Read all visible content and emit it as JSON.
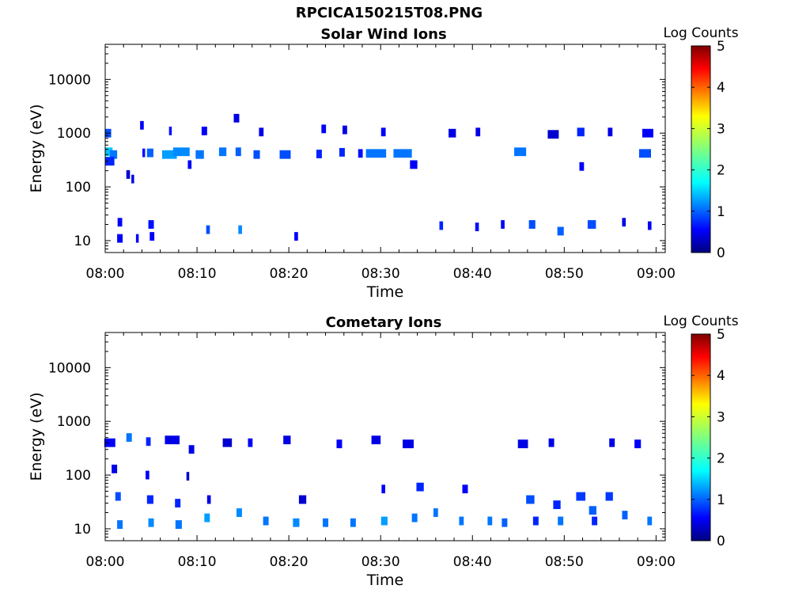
{
  "figure": {
    "title": "RPCICA150215T08.PNG"
  },
  "colorbar": {
    "label": "Log Counts",
    "ticks": [
      "0",
      "1",
      "2",
      "3",
      "4",
      "5"
    ],
    "range": [
      0,
      5
    ]
  },
  "chart_data": [
    {
      "type": "heatmap",
      "title": "Solar Wind Ions",
      "xlabel": "Time",
      "ylabel": "Energy (eV)",
      "x_ticks": [
        "08:00",
        "08:10",
        "08:20",
        "08:30",
        "08:40",
        "08:50",
        "09:00"
      ],
      "x_range_min": [
        0,
        61
      ],
      "y_ticks": [
        "10",
        "100",
        "1000",
        "10000"
      ],
      "y_scale": "log",
      "ylim_eV": [
        6,
        45000
      ],
      "cells": [
        [
          0.3,
          1000,
          0.7,
          1
        ],
        [
          0.4,
          450,
          0.8,
          1.6
        ],
        [
          0.9,
          400,
          0.8,
          1.2
        ],
        [
          0.5,
          300,
          1.0,
          0.8
        ],
        [
          1.6,
          22,
          0.5,
          0.6
        ],
        [
          1.6,
          11,
          0.6,
          0.6
        ],
        [
          2.5,
          170,
          0.4,
          0.4
        ],
        [
          3.0,
          140,
          0.3,
          0.5
        ],
        [
          3.5,
          11,
          0.3,
          0.6
        ],
        [
          4.0,
          1400,
          0.4,
          0.6
        ],
        [
          4.2,
          430,
          0.3,
          0.7
        ],
        [
          4.9,
          430,
          0.7,
          1.1
        ],
        [
          5.0,
          20,
          0.6,
          0.7
        ],
        [
          5.1,
          12,
          0.5,
          0.6
        ],
        [
          7.0,
          400,
          1.6,
          1.4
        ],
        [
          7.1,
          1100,
          0.3,
          0.7
        ],
        [
          8.3,
          450,
          1.8,
          1.3
        ],
        [
          9.2,
          260,
          0.4,
          0.6
        ],
        [
          10.3,
          400,
          0.9,
          1.2
        ],
        [
          10.8,
          1100,
          0.6,
          0.6
        ],
        [
          11.2,
          16,
          0.4,
          1.0
        ],
        [
          12.8,
          450,
          0.8,
          1.2
        ],
        [
          14.3,
          1900,
          0.6,
          0.5
        ],
        [
          14.5,
          450,
          0.6,
          1.1
        ],
        [
          14.7,
          16,
          0.4,
          1.3
        ],
        [
          16.5,
          400,
          0.7,
          1.0
        ],
        [
          17.0,
          1050,
          0.5,
          0.5
        ],
        [
          19.6,
          400,
          1.2,
          1.0
        ],
        [
          20.8,
          12,
          0.4,
          0.6
        ],
        [
          23.3,
          410,
          0.6,
          0.8
        ],
        [
          23.8,
          1200,
          0.5,
          0.6
        ],
        [
          25.8,
          440,
          0.6,
          0.8
        ],
        [
          26.1,
          1150,
          0.5,
          0.5
        ],
        [
          27.8,
          420,
          0.5,
          0.7
        ],
        [
          29.5,
          420,
          2.2,
          1.2
        ],
        [
          30.3,
          1050,
          0.5,
          0.6
        ],
        [
          32.4,
          420,
          2.0,
          1.2
        ],
        [
          33.6,
          260,
          0.8,
          0.6
        ],
        [
          36.6,
          19,
          0.4,
          0.8
        ],
        [
          37.8,
          1000,
          0.8,
          0.5
        ],
        [
          40.6,
          1050,
          0.5,
          0.5
        ],
        [
          40.5,
          18,
          0.4,
          0.7
        ],
        [
          43.3,
          20,
          0.4,
          0.6
        ],
        [
          45.2,
          450,
          1.3,
          1.2
        ],
        [
          46.5,
          20,
          0.7,
          1.0
        ],
        [
          48.8,
          950,
          1.2,
          0.4
        ],
        [
          49.6,
          15,
          0.7,
          1.1
        ],
        [
          51.8,
          1050,
          0.8,
          0.8
        ],
        [
          51.9,
          240,
          0.5,
          0.6
        ],
        [
          53.0,
          20,
          0.9,
          1.0
        ],
        [
          55.0,
          1050,
          0.5,
          0.5
        ],
        [
          56.5,
          22,
          0.4,
          0.5
        ],
        [
          58.8,
          420,
          1.3,
          1.0
        ],
        [
          59.1,
          1000,
          1.2,
          0.6
        ],
        [
          59.3,
          19,
          0.4,
          0.6
        ]
      ]
    },
    {
      "type": "heatmap",
      "title": "Cometary Ions",
      "xlabel": "Time",
      "ylabel": "Energy (eV)",
      "x_ticks": [
        "08:00",
        "08:10",
        "08:20",
        "08:30",
        "08:40",
        "08:50",
        "09:00"
      ],
      "x_range_min": [
        0,
        61
      ],
      "y_ticks": [
        "10",
        "100",
        "1000",
        "10000"
      ],
      "y_scale": "log",
      "ylim_eV": [
        6,
        45000
      ],
      "cells": [
        [
          0.5,
          400,
          1.2,
          0.6
        ],
        [
          1.0,
          130,
          0.6,
          0.5
        ],
        [
          1.4,
          40,
          0.6,
          1.0
        ],
        [
          1.6,
          12,
          0.6,
          1.2
        ],
        [
          2.6,
          500,
          0.6,
          1.2
        ],
        [
          4.7,
          420,
          0.5,
          0.8
        ],
        [
          4.6,
          100,
          0.4,
          0.6
        ],
        [
          4.9,
          35,
          0.7,
          0.8
        ],
        [
          5.0,
          13,
          0.6,
          1.3
        ],
        [
          7.3,
          450,
          1.6,
          0.5
        ],
        [
          7.9,
          30,
          0.6,
          0.8
        ],
        [
          8.0,
          12,
          0.7,
          1.2
        ],
        [
          9.4,
          300,
          0.6,
          0.5
        ],
        [
          9.0,
          95,
          0.3,
          0.4
        ],
        [
          11.1,
          16,
          0.6,
          1.4
        ],
        [
          11.3,
          35,
          0.4,
          0.5
        ],
        [
          13.3,
          400,
          1.0,
          0.4
        ],
        [
          14.6,
          20,
          0.6,
          1.3
        ],
        [
          15.8,
          400,
          0.5,
          0.6
        ],
        [
          17.5,
          14,
          0.6,
          1.2
        ],
        [
          19.8,
          450,
          0.8,
          0.5
        ],
        [
          20.8,
          13,
          0.7,
          1.3
        ],
        [
          21.5,
          35,
          0.8,
          0.4
        ],
        [
          24.0,
          13,
          0.6,
          1.2
        ],
        [
          25.5,
          380,
          0.6,
          0.6
        ],
        [
          27.0,
          13,
          0.6,
          1.2
        ],
        [
          29.5,
          450,
          1.0,
          0.5
        ],
        [
          30.4,
          14,
          0.7,
          1.4
        ],
        [
          30.3,
          55,
          0.4,
          0.6
        ],
        [
          33.0,
          380,
          1.2,
          0.5
        ],
        [
          33.7,
          16,
          0.6,
          1.2
        ],
        [
          34.3,
          60,
          0.8,
          0.8
        ],
        [
          36.0,
          20,
          0.5,
          1.2
        ],
        [
          38.8,
          14,
          0.5,
          1.2
        ],
        [
          39.2,
          55,
          0.6,
          0.6
        ],
        [
          41.9,
          14,
          0.5,
          1.2
        ],
        [
          43.5,
          13,
          0.6,
          1.1
        ],
        [
          45.5,
          380,
          1.1,
          0.5
        ],
        [
          46.3,
          35,
          0.9,
          1.0
        ],
        [
          46.9,
          14,
          0.6,
          0.8
        ],
        [
          48.6,
          400,
          0.6,
          0.5
        ],
        [
          49.2,
          28,
          0.8,
          0.8
        ],
        [
          49.6,
          14,
          0.6,
          1.2
        ],
        [
          51.8,
          40,
          1.0,
          0.9
        ],
        [
          53.1,
          22,
          0.8,
          1.1
        ],
        [
          53.3,
          14,
          0.6,
          0.8
        ],
        [
          54.9,
          40,
          0.8,
          0.9
        ],
        [
          56.6,
          18,
          0.6,
          1.1
        ],
        [
          58.0,
          380,
          0.7,
          0.6
        ],
        [
          59.3,
          14,
          0.5,
          1.2
        ],
        [
          55.2,
          400,
          0.6,
          0.5
        ]
      ]
    }
  ]
}
